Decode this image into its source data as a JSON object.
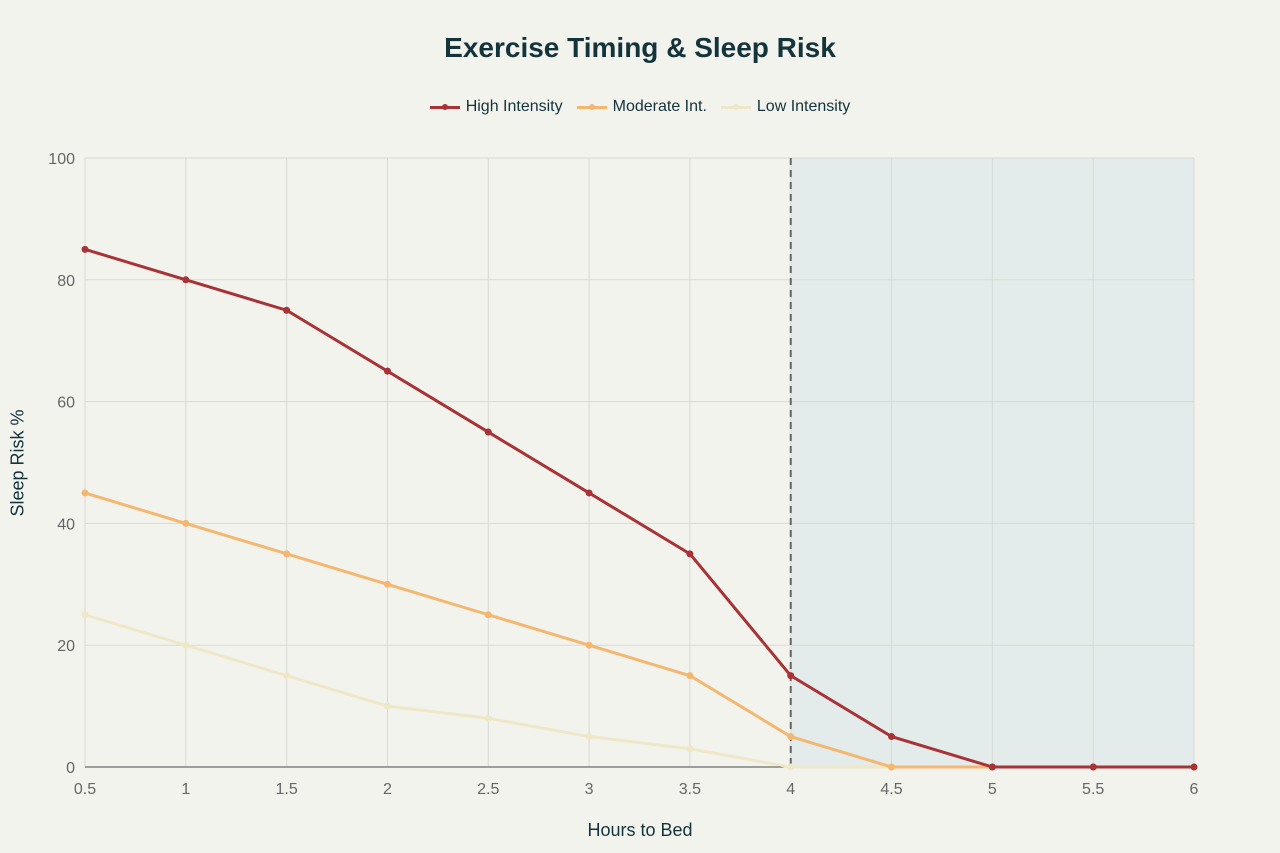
{
  "chart_data": {
    "type": "line",
    "title": "Exercise Timing & Sleep Risk",
    "xlabel": "Hours to Bed",
    "ylabel": "Sleep Risk %",
    "x": [
      0.5,
      1,
      1.5,
      2,
      2.5,
      3,
      3.5,
      4,
      4.5,
      5,
      5.5,
      6
    ],
    "x_tick_labels": [
      "0.5",
      "1",
      "1.5",
      "2",
      "2.5",
      "3",
      "3.5",
      "4",
      "4.5",
      "5",
      "5.5",
      "6"
    ],
    "y_tick_labels": [
      "0",
      "20",
      "40",
      "60",
      "80",
      "100"
    ],
    "xlim": [
      0.5,
      6
    ],
    "ylim": [
      0,
      100
    ],
    "grid": true,
    "legend_position": "top-center",
    "reference_line_x": 4,
    "shaded_region_x": [
      4,
      6
    ],
    "series": [
      {
        "name": "High Intensity",
        "color": "#a83236",
        "values": [
          85,
          80,
          75,
          65,
          55,
          45,
          35,
          15,
          5,
          0,
          0,
          0
        ]
      },
      {
        "name": "Moderate Int.",
        "color": "#f5b76f",
        "values": [
          45,
          40,
          35,
          30,
          25,
          20,
          15,
          5,
          0,
          0,
          0,
          0
        ]
      },
      {
        "name": "Low Intensity",
        "color": "#efe8c8",
        "values": [
          25,
          20,
          15,
          10,
          8,
          5,
          3,
          0,
          0,
          0,
          0,
          0
        ]
      }
    ]
  }
}
